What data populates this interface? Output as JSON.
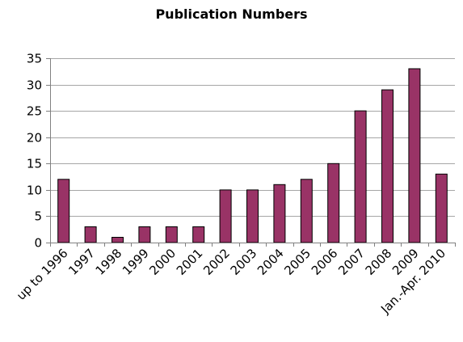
{
  "chart_data": {
    "type": "bar",
    "title": "Publication Numbers",
    "xlabel": "",
    "ylabel": "",
    "categories": [
      "up to 1996",
      "1997",
      "1998",
      "1999",
      "2000",
      "2001",
      "2002",
      "2003",
      "2004",
      "2005",
      "2006",
      "2007",
      "2008",
      "2009",
      "Jan.-Apr.  2010"
    ],
    "values": [
      12,
      3,
      1,
      3,
      3,
      3,
      10,
      10,
      11,
      12,
      15,
      25,
      29,
      33,
      13
    ],
    "ylim": [
      0,
      35
    ],
    "yticks": [
      0,
      5,
      10,
      15,
      20,
      25,
      30,
      35
    ],
    "grid": true,
    "legend": "none",
    "colors": {
      "bar_fill": "#993366",
      "bar_stroke": "#000000",
      "grid": "#a6a6a6",
      "axis": "#808080"
    }
  }
}
